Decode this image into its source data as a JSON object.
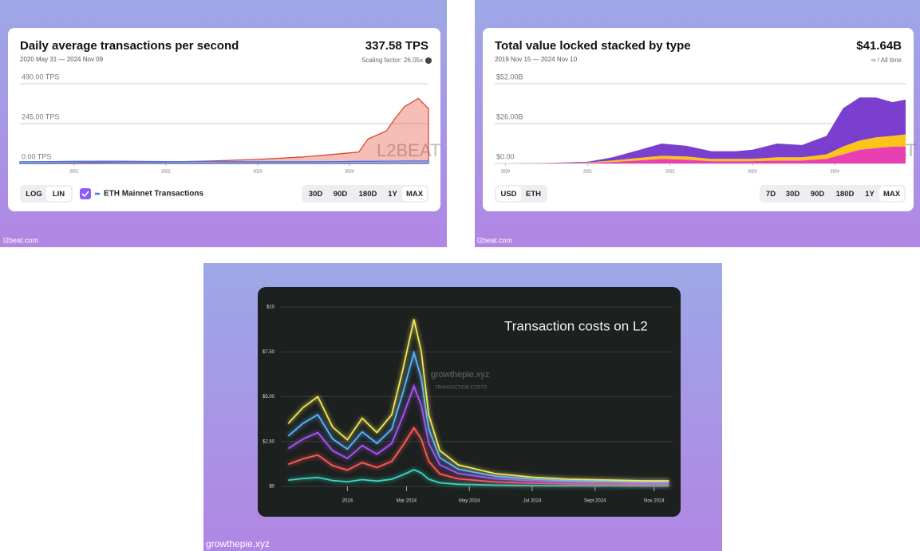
{
  "chart_data": [
    {
      "type": "area",
      "title": "Daily average transactions per second",
      "subtitle": "2020 May 31 — 2024 Nov 09",
      "headline": "337.58 TPS",
      "note": "Scaling factor: 26.05x",
      "watermark": "L2BEAT",
      "source": "l2beat.com",
      "x": [
        2020.41,
        2020.75,
        2021.0,
        2021.5,
        2022.0,
        2022.5,
        2023.0,
        2023.5,
        2023.9,
        2024.1,
        2024.2,
        2024.4,
        2024.5,
        2024.6,
        2024.75,
        2024.86
      ],
      "series": [
        {
          "color": "#e0452f",
          "values": [
            1,
            3,
            5,
            10,
            10,
            15,
            25,
            40,
            60,
            70,
            150,
            200,
            280,
            350,
            400,
            337.58
          ]
        },
        {
          "name": "ETH Mainnet Transactions",
          "color": "#4a78e0",
          "values": [
            11,
            12,
            13,
            14,
            12,
            12,
            11,
            11,
            12,
            13,
            13,
            14,
            14,
            15,
            15,
            15
          ]
        }
      ],
      "xlim": [
        2020.41,
        2024.86
      ],
      "xticks": [
        2021,
        2022,
        2023,
        2024
      ],
      "ylim": [
        0,
        490
      ],
      "yticks": [
        {
          "value": 0,
          "label": "0.00 TPS"
        },
        {
          "value": 245,
          "label": "245.00 TPS"
        },
        {
          "value": 490,
          "label": "490.00 TPS"
        }
      ],
      "grid": true,
      "left_buttons": [
        "LOG",
        "LIN"
      ],
      "range_buttons": [
        "30D",
        "90D",
        "180D",
        "1Y",
        "MAX"
      ],
      "selected": [
        "LIN",
        "MAX"
      ]
    },
    {
      "type": "stacked_area",
      "title": "Total value locked stacked by type",
      "subtitle": "2019 Nov 15 — 2024 Nov 10",
      "headline": "$41.64B",
      "note": "∞ / All time",
      "watermark": "L2BEAT",
      "source": "l2beat.com",
      "x": [
        2019.87,
        2020.5,
        2021.0,
        2021.3,
        2021.6,
        2021.9,
        2022.2,
        2022.5,
        2022.8,
        2023.0,
        2023.3,
        2023.6,
        2023.9,
        2024.1,
        2024.3,
        2024.5,
        2024.7,
        2024.86
      ],
      "series": [
        {
          "color": "#e93fb4",
          "values": [
            0,
            0.1,
            0.3,
            1,
            2,
            3,
            2.5,
            1.5,
            1.5,
            1.5,
            2,
            2,
            3,
            6,
            9,
            10,
            11,
            11
          ]
        },
        {
          "color": "#fcc419",
          "values": [
            0,
            0.1,
            0.3,
            1,
            1.5,
            2,
            2,
            1.5,
            1.5,
            1.5,
            2,
            2,
            3,
            5,
            6,
            7,
            7,
            8
          ]
        },
        {
          "color": "#7b3fd0",
          "values": [
            0,
            0.1,
            0.5,
            2,
            5,
            8,
            7,
            5,
            5,
            6,
            9,
            8,
            12,
            25,
            28,
            26,
            22,
            22.64
          ]
        }
      ],
      "xlim": [
        2019.87,
        2024.86
      ],
      "xticks": [
        2020,
        2021,
        2022,
        2023,
        2024
      ],
      "ylim": [
        0,
        52
      ],
      "yticks": [
        {
          "value": 0,
          "label": "$0.00"
        },
        {
          "value": 26,
          "label": "$26.00B"
        },
        {
          "value": 52,
          "label": "$52.00B"
        }
      ],
      "grid": true,
      "left_buttons": [
        "USD",
        "ETH"
      ],
      "range_buttons": [
        "7D",
        "30D",
        "90D",
        "180D",
        "1Y",
        "MAX"
      ],
      "selected": [
        "USD",
        "MAX"
      ]
    },
    {
      "type": "stacked_line",
      "title": "Transaction costs on L2",
      "watermark": "growthepie.xyz",
      "watermark_subtitle": "TRANSACTION COSTS",
      "source": "growthepie.xyz",
      "x": [
        2023.84,
        2023.88,
        2023.92,
        2023.96,
        2024.0,
        2024.04,
        2024.08,
        2024.12,
        2024.15,
        2024.18,
        2024.2,
        2024.22,
        2024.25,
        2024.3,
        2024.4,
        2024.5,
        2024.6,
        2024.7,
        2024.8,
        2024.87
      ],
      "series": [
        {
          "color": "#39d6c4",
          "values": [
            0.35,
            0.44,
            0.5,
            0.33,
            0.26,
            0.38,
            0.3,
            0.4,
            0.65,
            0.93,
            0.75,
            0.4,
            0.2,
            0.12,
            0.07,
            0.05,
            0.04,
            0.04,
            0.03,
            0.03
          ]
        },
        {
          "color": "#ff5a5a",
          "values": [
            0.88,
            1.1,
            1.25,
            0.83,
            0.65,
            0.95,
            0.75,
            1.0,
            1.63,
            2.33,
            1.88,
            1.0,
            0.5,
            0.3,
            0.18,
            0.13,
            0.1,
            0.09,
            0.08,
            0.08
          ]
        },
        {
          "color": "#a855f7",
          "values": [
            0.88,
            1.1,
            1.25,
            0.83,
            0.65,
            0.95,
            0.75,
            1.0,
            1.63,
            2.33,
            1.88,
            1.0,
            0.5,
            0.3,
            0.18,
            0.13,
            0.1,
            0.09,
            0.08,
            0.08
          ]
        },
        {
          "color": "#5ab4ff",
          "values": [
            0.7,
            0.88,
            1.0,
            0.66,
            0.52,
            0.76,
            0.6,
            0.8,
            1.3,
            1.86,
            1.5,
            0.8,
            0.4,
            0.24,
            0.14,
            0.1,
            0.08,
            0.07,
            0.06,
            0.06
          ]
        },
        {
          "color": "#f2e75a",
          "values": [
            0.7,
            0.88,
            1.0,
            0.66,
            0.52,
            0.76,
            0.6,
            0.8,
            1.3,
            1.86,
            1.5,
            0.8,
            0.4,
            0.24,
            0.14,
            0.1,
            0.08,
            0.07,
            0.06,
            0.06
          ]
        }
      ],
      "xlim": [
        2023.82,
        2024.88
      ],
      "xticks": [
        {
          "value": 2024.0,
          "label": "2024"
        },
        {
          "value": 2024.16,
          "label": "Mar 2024"
        },
        {
          "value": 2024.33,
          "label": "May 2024"
        },
        {
          "value": 2024.5,
          "label": "Jul 2024"
        },
        {
          "value": 2024.67,
          "label": "Sept 2024"
        },
        {
          "value": 2024.83,
          "label": "Nov 2024"
        }
      ],
      "ylim": [
        0,
        10
      ],
      "yticks": [
        {
          "value": 0,
          "label": "$0"
        },
        {
          "value": 2.5,
          "label": "$2.50"
        },
        {
          "value": 5,
          "label": "$5.00"
        },
        {
          "value": 7.5,
          "label": "$7.50"
        },
        {
          "value": 10,
          "label": "$10"
        }
      ],
      "grid": true
    }
  ]
}
